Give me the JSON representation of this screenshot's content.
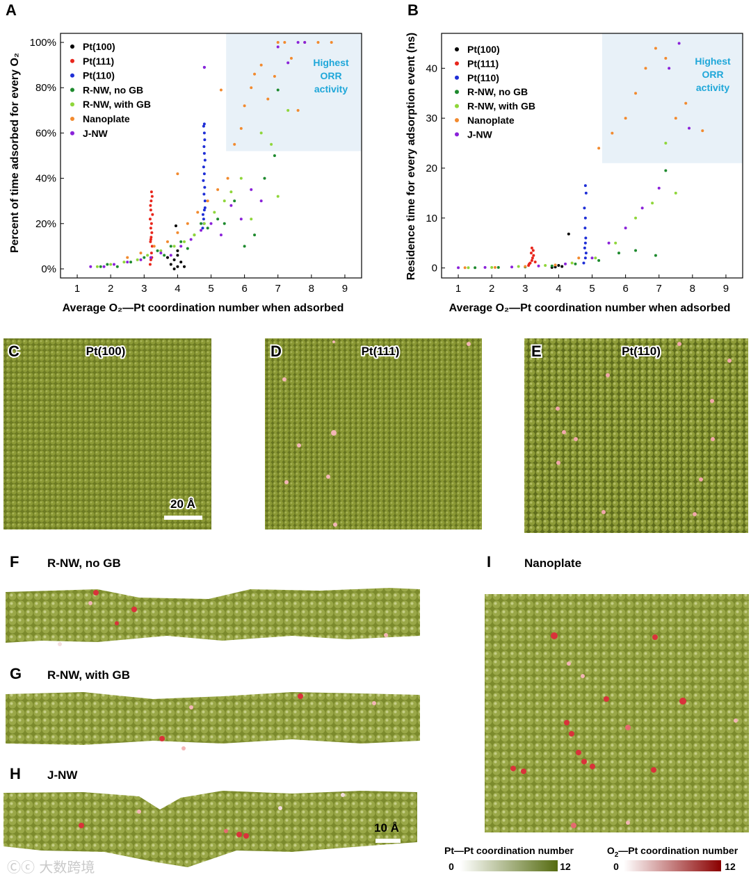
{
  "colors": {
    "Pt(100)": "#000000",
    "Pt(111)": "#e8261c",
    "Pt(110)": "#1f2fd6",
    "R-NW, no GB": "#1e8a2e",
    "R-NW, with GB": "#8fd63a",
    "Nanoplate": "#f28a2e",
    "J-NW": "#8a22d9",
    "region": "#e8f1f8",
    "pt_low": "#ffffff",
    "pt_high": "#556b10",
    "o2_low": "#ffffff",
    "o2_high": "#8a0000",
    "surface": "#7d8a2e"
  },
  "panel_letters": {
    "A": "A",
    "B": "B",
    "C": "C",
    "D": "D",
    "E": "E",
    "F": "F",
    "G": "G",
    "H": "H",
    "I": "I"
  },
  "region_label": [
    "Highest",
    "ORR",
    "activity"
  ],
  "tiles": {
    "C": "Pt(100)",
    "D": "Pt(111)",
    "E": "Pt(110)",
    "scale": "20 Å"
  },
  "wires": {
    "F": "R-NW, no GB",
    "G": "R-NW, with GB",
    "H": "J-NW",
    "I": "Nanoplate",
    "scale": "10 Å"
  },
  "colorbars": {
    "pt": {
      "title": "Pt—Pt coordination number",
      "min": "0",
      "max": "12"
    },
    "o2": {
      "title_prefix": "O",
      "title_sub": "2",
      "title_suffix": "—Pt coordination number",
      "min": "0",
      "max": "12"
    }
  },
  "watermark": "Ⓒⓒ 大数跨境",
  "chart_data": [
    {
      "panel": "A",
      "type": "scatter",
      "title": "",
      "xlabel": "Average O₂—Pt coordination number when adsorbed",
      "ylabel": "Percent of time adsorbed for every O₂",
      "xlim": [
        0.5,
        9.5
      ],
      "ylim": [
        -0.04,
        1.04
      ],
      "xticks": [
        1,
        2,
        3,
        4,
        5,
        6,
        7,
        8,
        9
      ],
      "xtick_labels": [
        "1",
        "2",
        "3",
        "4",
        "5",
        "6",
        "7",
        "8",
        "9"
      ],
      "yticks": [
        0,
        0.2,
        0.4,
        0.6,
        0.8,
        1.0
      ],
      "ytick_labels": [
        "0%",
        "20%",
        "40%",
        "60%",
        "80%",
        "100%"
      ],
      "legend": [
        "Pt(100)",
        "Pt(111)",
        "Pt(110)",
        "R-NW, no GB",
        "R-NW, with GB",
        "Nanoplate",
        "J-NW"
      ],
      "legend_position": "top-left",
      "highlight_region": {
        "x": [
          5.45,
          9.5
        ],
        "y": [
          0.52,
          1.04
        ]
      },
      "series": [
        {
          "name": "Pt(100)",
          "x": [
            3.8,
            3.9,
            4.0,
            4.0,
            4.1,
            4.0,
            3.9,
            3.7,
            4.2,
            3.95
          ],
          "y": [
            0.02,
            0.04,
            0.01,
            0.06,
            0.03,
            0.08,
            0.0,
            0.05,
            0.01,
            0.19
          ]
        },
        {
          "name": "Pt(111)",
          "x": [
            3.18,
            3.2,
            3.22,
            3.24,
            3.19,
            3.21,
            3.23,
            3.2,
            3.22,
            3.18,
            3.25,
            3.2,
            3.19,
            3.21,
            3.24,
            3.22,
            3.2,
            3.23
          ],
          "y": [
            0.02,
            0.04,
            0.07,
            0.1,
            0.12,
            0.14,
            0.16,
            0.18,
            0.2,
            0.22,
            0.24,
            0.26,
            0.28,
            0.3,
            0.32,
            0.34,
            0.13,
            0.05
          ]
        },
        {
          "name": "Pt(110)",
          "x": [
            4.75,
            4.78,
            4.8,
            4.82,
            4.79,
            4.81,
            4.77,
            4.8,
            4.78,
            4.82,
            4.8,
            4.79,
            4.81,
            4.8,
            4.78,
            4.8,
            4.82,
            4.79,
            4.8,
            4.76
          ],
          "y": [
            0.18,
            0.22,
            0.26,
            0.3,
            0.33,
            0.36,
            0.39,
            0.42,
            0.45,
            0.48,
            0.51,
            0.54,
            0.57,
            0.6,
            0.63,
            0.64,
            0.27,
            0.2,
            0.89,
            0.24
          ]
        },
        {
          "name": "R-NW, no GB",
          "x": [
            1.7,
            1.9,
            2.2,
            2.6,
            3.0,
            3.4,
            3.6,
            3.8,
            4.1,
            4.3,
            4.5,
            4.7,
            4.9,
            5.2,
            5.4,
            5.7,
            6.0,
            6.3,
            6.6,
            6.9,
            7.0
          ],
          "y": [
            0.01,
            0.02,
            0.01,
            0.03,
            0.05,
            0.08,
            0.06,
            0.1,
            0.12,
            0.09,
            0.15,
            0.2,
            0.18,
            0.22,
            0.2,
            0.3,
            0.1,
            0.15,
            0.4,
            0.5,
            0.79
          ]
        },
        {
          "name": "R-NW, with GB",
          "x": [
            1.6,
            2.0,
            2.4,
            2.8,
            3.1,
            3.5,
            3.9,
            4.2,
            4.5,
            4.8,
            5.1,
            5.4,
            5.6,
            5.9,
            6.2,
            6.5,
            6.8,
            7.0,
            7.3
          ],
          "y": [
            0.01,
            0.02,
            0.03,
            0.04,
            0.06,
            0.08,
            0.1,
            0.12,
            0.15,
            0.2,
            0.25,
            0.3,
            0.34,
            0.4,
            0.22,
            0.6,
            0.55,
            0.32,
            0.7
          ]
        },
        {
          "name": "Nanoplate",
          "x": [
            2.5,
            2.9,
            3.3,
            3.7,
            4.0,
            4.3,
            4.6,
            4.9,
            5.2,
            5.5,
            5.7,
            5.9,
            6.0,
            6.2,
            6.3,
            6.5,
            6.7,
            6.9,
            7.0,
            7.2,
            7.4,
            7.6,
            7.8,
            8.2,
            8.6,
            4.0,
            5.3
          ],
          "y": [
            0.05,
            0.07,
            0.1,
            0.12,
            0.16,
            0.2,
            0.25,
            0.3,
            0.35,
            0.4,
            0.55,
            0.62,
            0.72,
            0.8,
            0.86,
            0.9,
            0.75,
            0.85,
            1.0,
            1.0,
            0.93,
            0.7,
            1.0,
            1.0,
            1.0,
            0.42,
            0.79
          ]
        },
        {
          "name": "J-NW",
          "x": [
            1.4,
            1.8,
            2.1,
            2.5,
            2.9,
            3.2,
            3.5,
            3.8,
            4.1,
            4.4,
            4.7,
            5.0,
            5.3,
            5.6,
            5.9,
            6.2,
            6.5,
            7.0,
            7.3,
            7.6,
            7.8,
            4.8
          ],
          "y": [
            0.01,
            0.01,
            0.02,
            0.03,
            0.04,
            0.05,
            0.07,
            0.06,
            0.1,
            0.13,
            0.17,
            0.2,
            0.15,
            0.28,
            0.22,
            0.35,
            0.3,
            0.98,
            0.91,
            1.0,
            1.0,
            0.89
          ]
        }
      ]
    },
    {
      "panel": "B",
      "type": "scatter",
      "title": "",
      "xlabel": "Average O₂—Pt coordination number when adsorbed",
      "ylabel": "Residence time for every adsorption event (ns)",
      "xlim": [
        0.5,
        9.5
      ],
      "ylim": [
        -2,
        47
      ],
      "xticks": [
        1,
        2,
        3,
        4,
        5,
        6,
        7,
        8,
        9
      ],
      "xtick_labels": [
        "1",
        "2",
        "3",
        "4",
        "5",
        "6",
        "7",
        "8",
        "9"
      ],
      "yticks": [
        0,
        10,
        20,
        30,
        40
      ],
      "ytick_labels": [
        "0",
        "10",
        "20",
        "30",
        "40"
      ],
      "legend": [
        "Pt(100)",
        "Pt(111)",
        "Pt(110)",
        "R-NW, no GB",
        "R-NW, with GB",
        "Nanoplate",
        "J-NW"
      ],
      "legend_position": "top-left",
      "highlight_region": {
        "x": [
          5.3,
          9.5
        ],
        "y": [
          21,
          47
        ]
      },
      "series": [
        {
          "name": "Pt(100)",
          "x": [
            3.9,
            4.0,
            4.1,
            4.3,
            3.8
          ],
          "y": [
            0.2,
            0.5,
            0.3,
            6.8,
            0.1
          ]
        },
        {
          "name": "Pt(111)",
          "x": [
            3.1,
            3.15,
            3.2,
            3.22,
            3.25,
            3.18,
            3.24,
            3.2,
            3.3,
            3.12
          ],
          "y": [
            0.5,
            1.0,
            1.5,
            2.0,
            2.5,
            3.0,
            3.5,
            4.0,
            1.2,
            0.8
          ]
        },
        {
          "name": "Pt(110)",
          "x": [
            4.75,
            4.8,
            4.82,
            4.78,
            4.8,
            4.81,
            4.79,
            4.8,
            4.77,
            4.82,
            4.8
          ],
          "y": [
            1,
            2,
            3,
            4,
            5,
            6,
            8,
            10,
            12,
            15,
            16.5
          ]
        },
        {
          "name": "R-NW, no GB",
          "x": [
            1.5,
            2.2,
            3.0,
            3.8,
            4.5,
            5.2,
            5.8,
            6.3,
            6.9,
            7.2
          ],
          "y": [
            0.05,
            0.1,
            0.2,
            0.4,
            0.8,
            1.5,
            3.0,
            3.5,
            2.5,
            19.5
          ]
        },
        {
          "name": "R-NW, with GB",
          "x": [
            1.3,
            2.0,
            2.8,
            3.6,
            4.4,
            5.1,
            5.7,
            6.3,
            6.8,
            7.2,
            7.5
          ],
          "y": [
            0.05,
            0.1,
            0.3,
            0.5,
            1.0,
            2.0,
            5.0,
            10.0,
            13.0,
            25.0,
            15.0
          ]
        },
        {
          "name": "Nanoplate",
          "x": [
            1.2,
            2.1,
            3.0,
            3.9,
            4.6,
            5.2,
            5.6,
            6.0,
            6.3,
            6.6,
            6.9,
            7.2,
            7.5,
            7.8,
            8.3
          ],
          "y": [
            0.05,
            0.1,
            0.3,
            0.6,
            2.0,
            24.0,
            27.0,
            30.0,
            35.0,
            40.0,
            44.0,
            42.0,
            30.0,
            33.0,
            27.5
          ]
        },
        {
          "name": "J-NW",
          "x": [
            1.0,
            1.8,
            2.6,
            3.4,
            4.2,
            5.0,
            5.5,
            6.0,
            6.5,
            7.0,
            7.3,
            7.6,
            7.9
          ],
          "y": [
            0.05,
            0.1,
            0.2,
            0.4,
            0.8,
            2.0,
            5.0,
            8.0,
            12.0,
            16.0,
            40.0,
            45.0,
            28.0
          ]
        }
      ]
    }
  ]
}
